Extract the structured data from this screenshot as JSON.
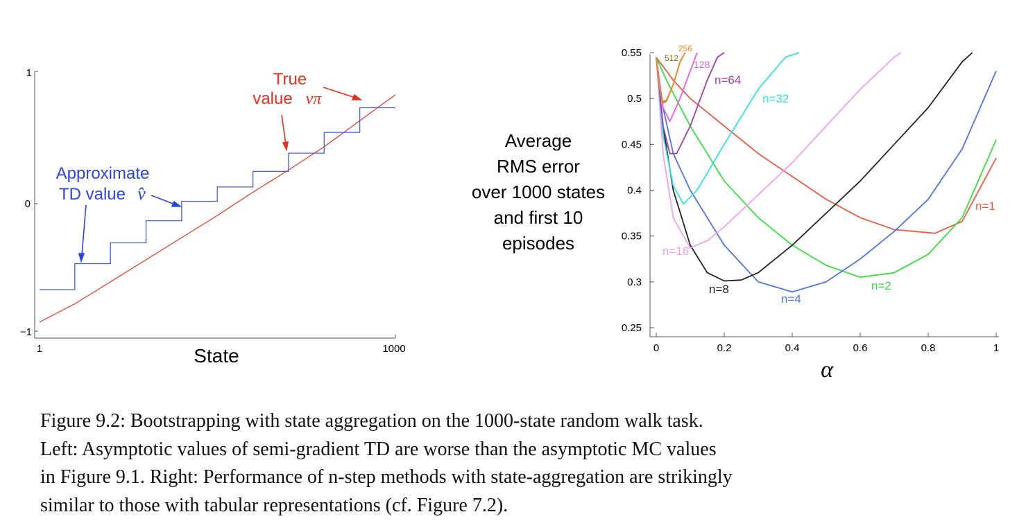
{
  "chart_data": [
    {
      "type": "line",
      "title": "",
      "xlabel": "State",
      "ylabel": "",
      "xlim": [
        1,
        1000
      ],
      "ylim": [
        -1,
        1
      ],
      "x_tick_labels": [
        "1",
        "1000"
      ],
      "y_tick_labels": [
        "1",
        "0",
        "−1"
      ],
      "series": [
        {
          "name": "True value vπ",
          "color": "#e8432c",
          "x": [
            1,
            50,
            100,
            200,
            300,
            400,
            500,
            600,
            700,
            800,
            900,
            950,
            1000
          ],
          "y": [
            -0.93,
            -0.86,
            -0.79,
            -0.62,
            -0.45,
            -0.28,
            -0.11,
            0.07,
            0.24,
            0.42,
            0.62,
            0.72,
            0.82
          ]
        },
        {
          "name": "Approximate TD value v̂",
          "color": "#3f5fe6",
          "step": true,
          "x": [
            1,
            100,
            100,
            200,
            200,
            300,
            300,
            400,
            400,
            500,
            500,
            600,
            600,
            700,
            700,
            800,
            800,
            900,
            900,
            1000
          ],
          "y": [
            -0.68,
            -0.68,
            -0.48,
            -0.48,
            -0.32,
            -0.32,
            -0.15,
            -0.15,
            0.0,
            0.0,
            0.11,
            0.11,
            0.23,
            0.23,
            0.37,
            0.37,
            0.53,
            0.53,
            0.72,
            0.72
          ]
        }
      ],
      "annotations": {
        "true_line1": "True",
        "true_line2": "value",
        "true_symbol": "vπ",
        "td_line1": "Approximate",
        "td_line2": "TD value",
        "td_symbol": "v̂"
      }
    },
    {
      "type": "line",
      "title": "",
      "xlabel": "α",
      "ylabel": "Average RMS error over 1000 states and first 10 episodes",
      "ylabel_lines": [
        "Average",
        "RMS error",
        "over 1000 states",
        "and first 10",
        "episodes"
      ],
      "xlim": [
        0,
        1
      ],
      "ylim": [
        0.25,
        0.55
      ],
      "x_ticks": [
        0,
        0.2,
        0.4,
        0.6,
        0.8,
        1
      ],
      "x_tick_labels": [
        "0",
        "0.2",
        "0.4",
        "0.6",
        "0.8",
        "1"
      ],
      "y_ticks": [
        0.25,
        0.3,
        0.35,
        0.4,
        0.45,
        0.5,
        0.55
      ],
      "y_tick_labels": [
        "0.25",
        "0.3",
        "0.35",
        "0.4",
        "0.45",
        "0.5",
        "0.55"
      ],
      "series": [
        {
          "name": "n=1",
          "color": "#ec5a45",
          "x": [
            0,
            0.05,
            0.1,
            0.2,
            0.3,
            0.4,
            0.5,
            0.6,
            0.7,
            0.82,
            0.9,
            1.0
          ],
          "y": [
            0.545,
            0.52,
            0.5,
            0.47,
            0.44,
            0.415,
            0.39,
            0.37,
            0.357,
            0.353,
            0.366,
            0.435
          ]
        },
        {
          "name": "n=2",
          "color": "#36e03b",
          "x": [
            0,
            0.03,
            0.1,
            0.2,
            0.3,
            0.4,
            0.5,
            0.6,
            0.7,
            0.8,
            0.9,
            1.0
          ],
          "y": [
            0.545,
            0.52,
            0.47,
            0.41,
            0.37,
            0.34,
            0.318,
            0.305,
            0.31,
            0.33,
            0.37,
            0.455
          ]
        },
        {
          "name": "n=4",
          "color": "#4a74e8",
          "x": [
            0,
            0.02,
            0.05,
            0.1,
            0.2,
            0.3,
            0.4,
            0.5,
            0.6,
            0.7,
            0.8,
            0.9,
            1.0
          ],
          "y": [
            0.545,
            0.49,
            0.44,
            0.4,
            0.34,
            0.3,
            0.289,
            0.3,
            0.325,
            0.355,
            0.39,
            0.445,
            0.53
          ]
        },
        {
          "name": "n=8",
          "color": "#222222",
          "x": [
            0,
            0.02,
            0.05,
            0.1,
            0.15,
            0.2,
            0.25,
            0.3,
            0.4,
            0.5,
            0.6,
            0.7,
            0.8,
            0.9,
            0.93
          ],
          "y": [
            0.545,
            0.47,
            0.4,
            0.34,
            0.31,
            0.301,
            0.302,
            0.31,
            0.34,
            0.375,
            0.41,
            0.45,
            0.49,
            0.54,
            0.55
          ]
        },
        {
          "name": "n=16",
          "color": "#f29ff0",
          "x": [
            0,
            0.02,
            0.05,
            0.1,
            0.15,
            0.2,
            0.3,
            0.4,
            0.5,
            0.6,
            0.7,
            0.72
          ],
          "y": [
            0.545,
            0.44,
            0.37,
            0.337,
            0.345,
            0.36,
            0.395,
            0.43,
            0.47,
            0.51,
            0.545,
            0.55
          ]
        },
        {
          "name": "n=32",
          "color": "#2fe3e3",
          "x": [
            0,
            0.02,
            0.05,
            0.08,
            0.12,
            0.2,
            0.3,
            0.38,
            0.42
          ],
          "y": [
            0.545,
            0.46,
            0.405,
            0.385,
            0.4,
            0.45,
            0.51,
            0.545,
            0.55
          ]
        },
        {
          "name": "n=64",
          "color": "#a23ca8",
          "x": [
            0,
            0.02,
            0.04,
            0.06,
            0.1,
            0.15,
            0.18,
            0.2
          ],
          "y": [
            0.545,
            0.47,
            0.44,
            0.44,
            0.47,
            0.52,
            0.545,
            0.55
          ]
        },
        {
          "name": "128",
          "color": "#ea5ee6",
          "x": [
            0,
            0.02,
            0.04,
            0.07,
            0.09,
            0.12
          ],
          "y": [
            0.545,
            0.49,
            0.475,
            0.5,
            0.52,
            0.55
          ]
        },
        {
          "name": "512",
          "color": "#8a6a18",
          "x": [
            0,
            0.01,
            0.02,
            0.03,
            0.05,
            0.07,
            0.085
          ],
          "y": [
            0.545,
            0.51,
            0.496,
            0.498,
            0.515,
            0.54,
            0.55
          ]
        },
        {
          "name": "256",
          "color": "#ef8a2b",
          "x": [
            0,
            0.01,
            0.02,
            0.03,
            0.05,
            0.07,
            0.085
          ],
          "y": [
            0.545,
            0.51,
            0.495,
            0.497,
            0.515,
            0.54,
            0.55
          ]
        }
      ]
    }
  ],
  "caption": {
    "lines": [
      "Figure 9.2: Bootstrapping with state aggregation on the 1000-state random walk task.",
      "Left: Asymptotic values of semi-gradient TD are worse than the asymptotic MC values",
      "in Figure 9.1. Right: Performance of n-step methods with state-aggregation are strikingly",
      "similar to those with tabular representations (cf. Figure 7.2)."
    ]
  }
}
